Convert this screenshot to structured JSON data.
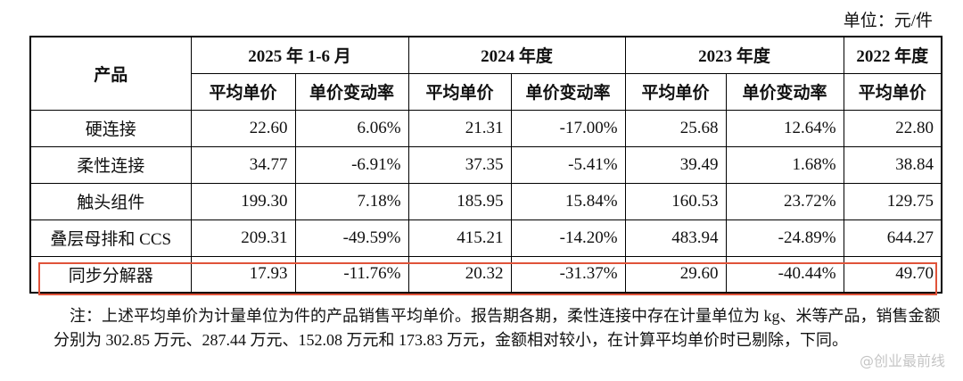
{
  "unit": "单位：元/件",
  "table": {
    "header": {
      "product": "产品",
      "periods": [
        "2025 年 1-6 月",
        "2024 年度",
        "2023 年度",
        "2022 年度"
      ],
      "columns": [
        "平均单价",
        "单价变动率",
        "平均单价",
        "单价变动率",
        "平均单价",
        "单价变动率",
        "平均单价"
      ]
    },
    "rows": [
      [
        "硬连接",
        "22.60",
        "6.06%",
        "21.31",
        "-17.00%",
        "25.68",
        "12.64%",
        "22.80"
      ],
      [
        "柔性连接",
        "34.77",
        "-6.91%",
        "37.35",
        "-5.41%",
        "39.49",
        "1.68%",
        "38.84"
      ],
      [
        "触头组件",
        "199.30",
        "7.18%",
        "185.95",
        "15.84%",
        "160.53",
        "23.72%",
        "129.75"
      ],
      [
        "叠层母排和 CCS",
        "209.31",
        "-49.59%",
        "415.21",
        "-14.20%",
        "483.94",
        "-24.89%",
        "644.27"
      ],
      [
        "同步分解器",
        "17.93",
        "-11.76%",
        "20.32",
        "-31.37%",
        "29.60",
        "-40.44%",
        "49.70"
      ]
    ]
  },
  "note": "注：上述平均单价为计量单位为件的产品销售平均单价。报告期各期，柔性连接中存在计量单位为 kg、米等产品，销售金额分别为 302.85 万元、287.44 万元、152.08 万元和 173.83 万元，金额相对较小，在计算平均单价时已剔除，下同。",
  "watermark": "@创业最前线"
}
